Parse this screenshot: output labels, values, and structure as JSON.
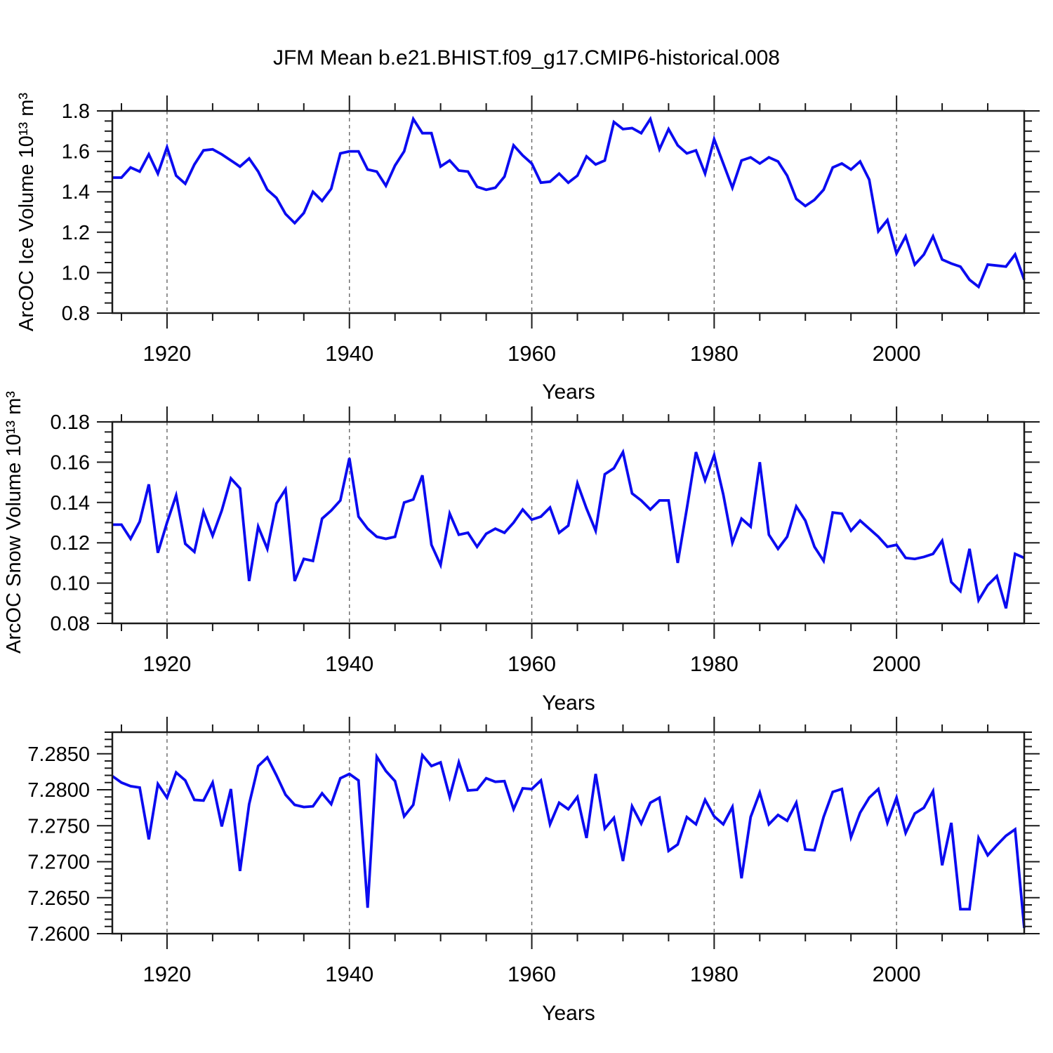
{
  "title": "JFM Mean b.e21.BHIST.f09_g17.CMIP6-historical.008",
  "line_color": "#0b0bf0",
  "grid_color": "#666666",
  "axis_color": "#1a1a1a",
  "chart_data": [
    {
      "type": "line",
      "title": "JFM Mean b.e21.BHIST.f09_g17.CMIP6-historical.008",
      "ylabel": "ArcOC Ice Volume 10¹³ m³",
      "xlabel": "Years",
      "xlim": [
        1914,
        2014
      ],
      "ylim": [
        0.8,
        1.8
      ],
      "x_start": 1914,
      "x_step": 1,
      "xticks_major": [
        1920,
        1940,
        1960,
        1980,
        2000
      ],
      "xtick_labels": [
        "1920",
        "1940",
        "1960",
        "1980",
        "2000"
      ],
      "xticks_minor_step": 5,
      "yticks_major": [
        0.8,
        1.0,
        1.2,
        1.4,
        1.6,
        1.8
      ],
      "ytick_labels": [
        "0.8",
        "1.0",
        "1.2",
        "1.4",
        "1.6",
        "1.8"
      ],
      "yticks_minor_step": 0.05,
      "grid": "vertical-dashed-at-x-majors",
      "legend_position": "none",
      "values": [
        1.47,
        1.47,
        1.52,
        1.5,
        1.585,
        1.49,
        1.62,
        1.48,
        1.44,
        1.535,
        1.605,
        1.61,
        1.585,
        1.555,
        1.525,
        1.565,
        1.5,
        1.41,
        1.37,
        1.29,
        1.245,
        1.295,
        1.4,
        1.355,
        1.415,
        1.59,
        1.6,
        1.6,
        1.51,
        1.5,
        1.43,
        1.53,
        1.6,
        1.76,
        1.69,
        1.69,
        1.525,
        1.555,
        1.505,
        1.5,
        1.425,
        1.41,
        1.42,
        1.475,
        1.63,
        1.58,
        1.54,
        1.445,
        1.45,
        1.49,
        1.445,
        1.48,
        1.575,
        1.535,
        1.555,
        1.745,
        1.71,
        1.715,
        1.69,
        1.76,
        1.61,
        1.71,
        1.63,
        1.59,
        1.605,
        1.49,
        1.66,
        1.54,
        1.42,
        1.555,
        1.57,
        1.54,
        1.57,
        1.55,
        1.48,
        1.365,
        1.33,
        1.36,
        1.41,
        1.52,
        1.54,
        1.51,
        1.55,
        1.46,
        1.205,
        1.26,
        1.095,
        1.18,
        1.04,
        1.09,
        1.18,
        1.065,
        1.045,
        1.03,
        0.965,
        0.93,
        1.04,
        1.035,
        1.03,
        1.09,
        0.965
      ]
    },
    {
      "type": "line",
      "title": "",
      "ylabel": "ArcOC Snow Volume 10¹³ m³",
      "xlabel": "Years",
      "xlim": [
        1914,
        2014
      ],
      "ylim": [
        0.08,
        0.18
      ],
      "x_start": 1914,
      "x_step": 1,
      "xticks_major": [
        1920,
        1940,
        1960,
        1980,
        2000
      ],
      "xtick_labels": [
        "1920",
        "1940",
        "1960",
        "1980",
        "2000"
      ],
      "xticks_minor_step": 5,
      "yticks_major": [
        0.08,
        0.1,
        0.12,
        0.14,
        0.16,
        0.18
      ],
      "ytick_labels": [
        "0.08",
        "0.10",
        "0.12",
        "0.14",
        "0.16",
        "0.18"
      ],
      "yticks_minor_step": 0.005,
      "grid": "vertical-dashed-at-x-majors",
      "legend_position": "none",
      "values": [
        0.129,
        0.129,
        0.122,
        0.1305,
        0.149,
        0.115,
        0.13,
        0.1435,
        0.1195,
        0.1155,
        0.1355,
        0.1235,
        0.136,
        0.152,
        0.147,
        0.101,
        0.128,
        0.117,
        0.1395,
        0.1465,
        0.101,
        0.112,
        0.111,
        0.132,
        0.136,
        0.141,
        0.162,
        0.133,
        0.127,
        0.123,
        0.122,
        0.123,
        0.14,
        0.1415,
        0.1535,
        0.119,
        0.109,
        0.1345,
        0.124,
        0.125,
        0.118,
        0.1245,
        0.127,
        0.125,
        0.13,
        0.1365,
        0.1315,
        0.133,
        0.1375,
        0.125,
        0.1285,
        0.1495,
        0.137,
        0.126,
        0.154,
        0.157,
        0.165,
        0.1445,
        0.141,
        0.1365,
        0.141,
        0.141,
        0.11,
        0.137,
        0.165,
        0.151,
        0.1635,
        0.144,
        0.12,
        0.132,
        0.128,
        0.16,
        0.124,
        0.117,
        0.123,
        0.138,
        0.131,
        0.118,
        0.111,
        0.135,
        0.1345,
        0.126,
        0.131,
        0.127,
        0.123,
        0.118,
        0.119,
        0.1125,
        0.112,
        0.113,
        0.1145,
        0.121,
        0.1005,
        0.096,
        0.117,
        0.0915,
        0.099,
        0.1035,
        0.0875,
        0.1145,
        0.1125
      ]
    },
    {
      "type": "line",
      "title": "",
      "ylabel": "",
      "xlabel": "Years",
      "xlim": [
        1914,
        2014
      ],
      "ylim": [
        7.26,
        7.288
      ],
      "x_start": 1914,
      "x_step": 1,
      "xticks_major": [
        1920,
        1940,
        1960,
        1980,
        2000
      ],
      "xtick_labels": [
        "1920",
        "1940",
        "1960",
        "1980",
        "2000"
      ],
      "xticks_minor_step": 5,
      "yticks_major": [
        7.26,
        7.265,
        7.27,
        7.275,
        7.28,
        7.285
      ],
      "ytick_labels": [
        "7.2600",
        "7.2650",
        "7.2700",
        "7.2750",
        "7.2800",
        "7.2850"
      ],
      "yticks_minor_step": 0.001,
      "grid": "vertical-dashed-at-x-majors",
      "legend_position": "none",
      "values": [
        7.2819,
        7.281,
        7.2805,
        7.2803,
        7.2731,
        7.2808,
        7.2789,
        7.2824,
        7.2813,
        7.2786,
        7.2785,
        7.281,
        7.2749,
        7.2801,
        7.2687,
        7.278,
        7.2833,
        7.2845,
        7.282,
        7.2793,
        7.2779,
        7.2776,
        7.2777,
        7.2795,
        7.278,
        7.2816,
        7.2822,
        7.2813,
        7.2636,
        7.2846,
        7.2826,
        7.2812,
        7.2763,
        7.2779,
        7.2848,
        7.2833,
        7.2838,
        7.279,
        7.2838,
        7.2799,
        7.28,
        7.2816,
        7.2811,
        7.2812,
        7.2773,
        7.2802,
        7.2801,
        7.2813,
        7.2752,
        7.2782,
        7.2773,
        7.279,
        7.2733,
        7.2822,
        7.2746,
        7.2761,
        7.2701,
        7.2777,
        7.2753,
        7.2782,
        7.2789,
        7.2715,
        7.2724,
        7.2762,
        7.2752,
        7.2786,
        7.2763,
        7.2752,
        7.2776,
        7.2677,
        7.2762,
        7.2796,
        7.2752,
        7.2765,
        7.2757,
        7.2782,
        7.2717,
        7.2716,
        7.2762,
        7.2797,
        7.2801,
        7.2734,
        7.2768,
        7.2789,
        7.2801,
        7.2754,
        7.2789,
        7.274,
        7.2767,
        7.2775,
        7.2798,
        7.2695,
        7.2754,
        7.2634,
        7.2634,
        7.2733,
        7.2709,
        7.2723,
        7.2736,
        7.2745,
        7.2608
      ]
    }
  ]
}
